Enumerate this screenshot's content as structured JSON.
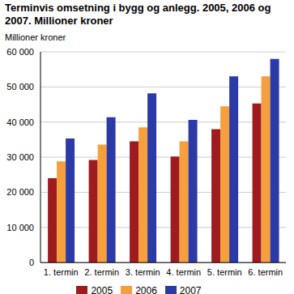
{
  "chart_data": {
    "type": "bar",
    "title": "Terminvis omsetning i bygg og anlegg. 2005, 2006 og 2007. Millioner kroner",
    "y_label": "Millioner kroner",
    "categories": [
      "1. termin",
      "2. termin",
      "3. termin",
      "4. termin",
      "5. termin",
      "6. termin"
    ],
    "series": [
      {
        "name": "2005",
        "color": "#9e1b20",
        "values": [
          24000,
          29200,
          34500,
          30200,
          38000,
          45300
        ]
      },
      {
        "name": "2006",
        "color": "#f6a03d",
        "values": [
          28800,
          33600,
          38500,
          34500,
          44500,
          53000
        ]
      },
      {
        "name": "2007",
        "color": "#2b3aa6",
        "values": [
          35300,
          41400,
          48200,
          40600,
          53000,
          58000
        ]
      }
    ],
    "ylim": [
      0,
      60000
    ],
    "yticks": [
      0,
      {
        "value": 10000,
        "label": "10 000"
      },
      {
        "value": 20000,
        "label": "20 000"
      },
      {
        "value": 30000,
        "label": "30 000"
      },
      {
        "value": 40000,
        "label": "40 000"
      },
      {
        "value": 50000,
        "label": "50 000"
      },
      {
        "value": 60000,
        "label": "60 000"
      }
    ],
    "grid": true,
    "legend": "bottom"
  }
}
